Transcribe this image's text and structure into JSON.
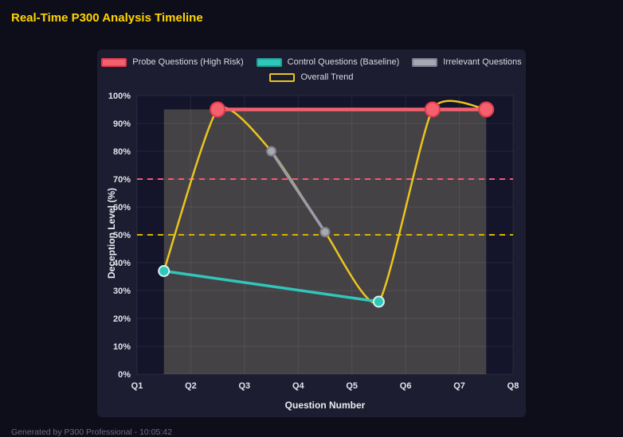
{
  "header": {
    "title": "Real-Time P300 Analysis Timeline"
  },
  "footer": {
    "text": "Generated by P300 Professional - 10:05:42"
  },
  "chart_data": {
    "type": "line",
    "title": "Real-Time P300 Analysis Timeline",
    "xlabel": "Question Number",
    "ylabel": "Deception Level (%)",
    "x_tick_labels": [
      "Q1",
      "Q2",
      "Q3",
      "Q4",
      "Q5",
      "Q6",
      "Q7",
      "Q8"
    ],
    "x_min": 1,
    "x_max": 8,
    "y_min": 0,
    "y_max": 100,
    "y_step": 10,
    "y_tick_suffix": "%",
    "grid": true,
    "grid_color": "rgba(255,255,255,0.08)",
    "legend_position": "top",
    "series": [
      {
        "name": "Probe Questions (High Risk)",
        "color": "#f4606e",
        "line_width": 4.5,
        "smooth": false,
        "points": [
          [
            2.5,
            95
          ],
          [
            6.5,
            95
          ],
          [
            7.5,
            95
          ]
        ],
        "marker": {
          "radius": 9,
          "fill": "#f4606e",
          "stroke": "#e23c4e",
          "stroke_width": 2
        },
        "legend_swatch": {
          "fill": "#f4606e",
          "border": "#e23c4e"
        }
      },
      {
        "name": "Control Questions (Baseline)",
        "color": "#2fc7ba",
        "line_width": 3.5,
        "smooth": false,
        "points": [
          [
            1.5,
            37
          ],
          [
            5.5,
            26
          ]
        ],
        "marker": {
          "radius": 6.5,
          "fill": "#2fc7ba",
          "stroke": "#d6f3f0",
          "stroke_width": 2
        },
        "legend_swatch": {
          "fill": "#2fc7ba",
          "border": "#1fa396"
        }
      },
      {
        "name": "Irrelevant Questions",
        "color": "#9b9ca8",
        "line_width": 3.5,
        "smooth": false,
        "points": [
          [
            3.5,
            80
          ],
          [
            4.5,
            51
          ]
        ],
        "marker": {
          "radius": 5.5,
          "fill": "#a7a8b3",
          "stroke": "#7f808c",
          "stroke_width": 2
        },
        "legend_swatch": {
          "fill": "#a7a8b3",
          "border": "#7f808c"
        }
      },
      {
        "name": "Overall Trend",
        "color": "#e9c51f",
        "line_width": 2.5,
        "smooth": true,
        "points": [
          [
            1.5,
            37
          ],
          [
            2.5,
            95
          ],
          [
            3.5,
            80
          ],
          [
            4.5,
            51
          ],
          [
            5.5,
            26
          ],
          [
            6.5,
            95
          ],
          [
            7.5,
            95
          ]
        ],
        "marker": {
          "radius": 0
        },
        "legend_swatch": {
          "fill": "transparent",
          "border": "#e9c51f"
        }
      }
    ],
    "thresholds": [
      {
        "value": 70,
        "color": "#ff5577",
        "dash": "7 6",
        "width": 2
      },
      {
        "value": 50,
        "color": "#d8b500",
        "dash": "7 6",
        "width": 2
      }
    ],
    "shaded_region": {
      "x0": 1.5,
      "x1": 7.5,
      "y0": 0,
      "y1": 95,
      "color": "rgba(225,215,160,0.24)"
    }
  }
}
